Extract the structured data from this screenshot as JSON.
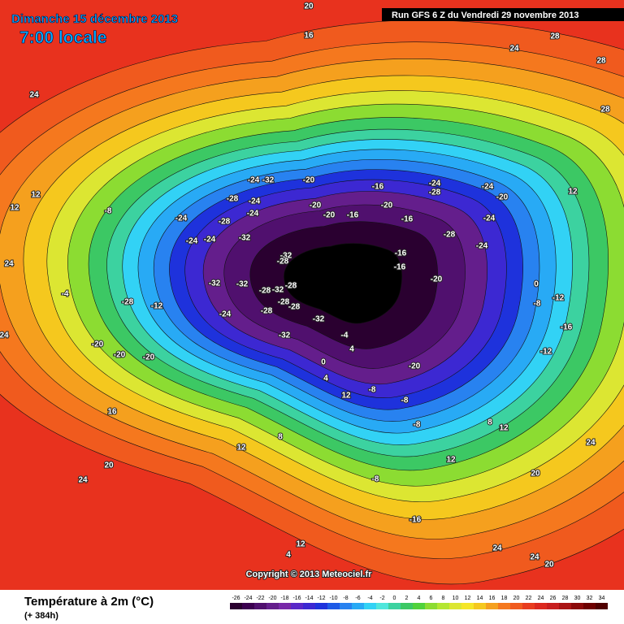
{
  "header": {
    "date": "Dimanche 15 décembre 2013",
    "time": "7:00 locale",
    "run": "Run GFS 6 Z du Vendredi 29 novembre 2013"
  },
  "copyright": "Copyright © 2013 Meteociel.fr",
  "legend": {
    "title": "Température à 2m (°C)",
    "subtitle": "(+ 384h)",
    "scale": [
      -26,
      -24,
      -22,
      -20,
      -18,
      -16,
      -14,
      -12,
      -10,
      -8,
      -6,
      -4,
      -2,
      0,
      2,
      4,
      6,
      8,
      10,
      12,
      14,
      16,
      18,
      20,
      22,
      24,
      26,
      28,
      30,
      32,
      34
    ],
    "colors": [
      "#2a0030",
      "#3c0050",
      "#50106e",
      "#641e8c",
      "#7828a8",
      "#5a28c8",
      "#3c28d2",
      "#1e32dc",
      "#1e5ae6",
      "#2882f0",
      "#28aaf5",
      "#32d2f5",
      "#50e6dc",
      "#3cd2a0",
      "#3cc864",
      "#50d23c",
      "#8cdc32",
      "#b4e632",
      "#dce632",
      "#f5e628",
      "#f5c81e",
      "#f5a01e",
      "#f5781e",
      "#f05a1e",
      "#e83c1e",
      "#dc281e",
      "#c81e1e",
      "#aa1414",
      "#8c0a0a",
      "#6e0000",
      "#500000"
    ]
  },
  "map_labels": [
    20,
    16,
    24,
    28,
    28,
    28,
    24,
    12,
    12,
    24,
    24,
    -8,
    -4,
    -28,
    -12,
    -20,
    -20,
    -20,
    -24,
    -32,
    -20,
    -28,
    -24,
    -24,
    -24,
    -28,
    -24,
    -24,
    -32,
    -32,
    -28,
    -20,
    -20,
    -16,
    -16,
    -20,
    -16,
    -24,
    -28,
    -24,
    -20,
    -24,
    -28,
    -24,
    -16,
    -16,
    -20,
    -32,
    -32,
    -28,
    -32,
    -28,
    -28,
    -28,
    -28,
    -24,
    -32,
    -32,
    -4,
    4,
    0,
    4,
    12,
    -8,
    -20,
    0,
    -12,
    -16,
    -12,
    -8,
    12,
    16,
    12,
    20,
    24,
    8,
    -8,
    -8,
    -8,
    8,
    12,
    12,
    20,
    24,
    24,
    24,
    20,
    -16,
    12,
    4
  ]
}
